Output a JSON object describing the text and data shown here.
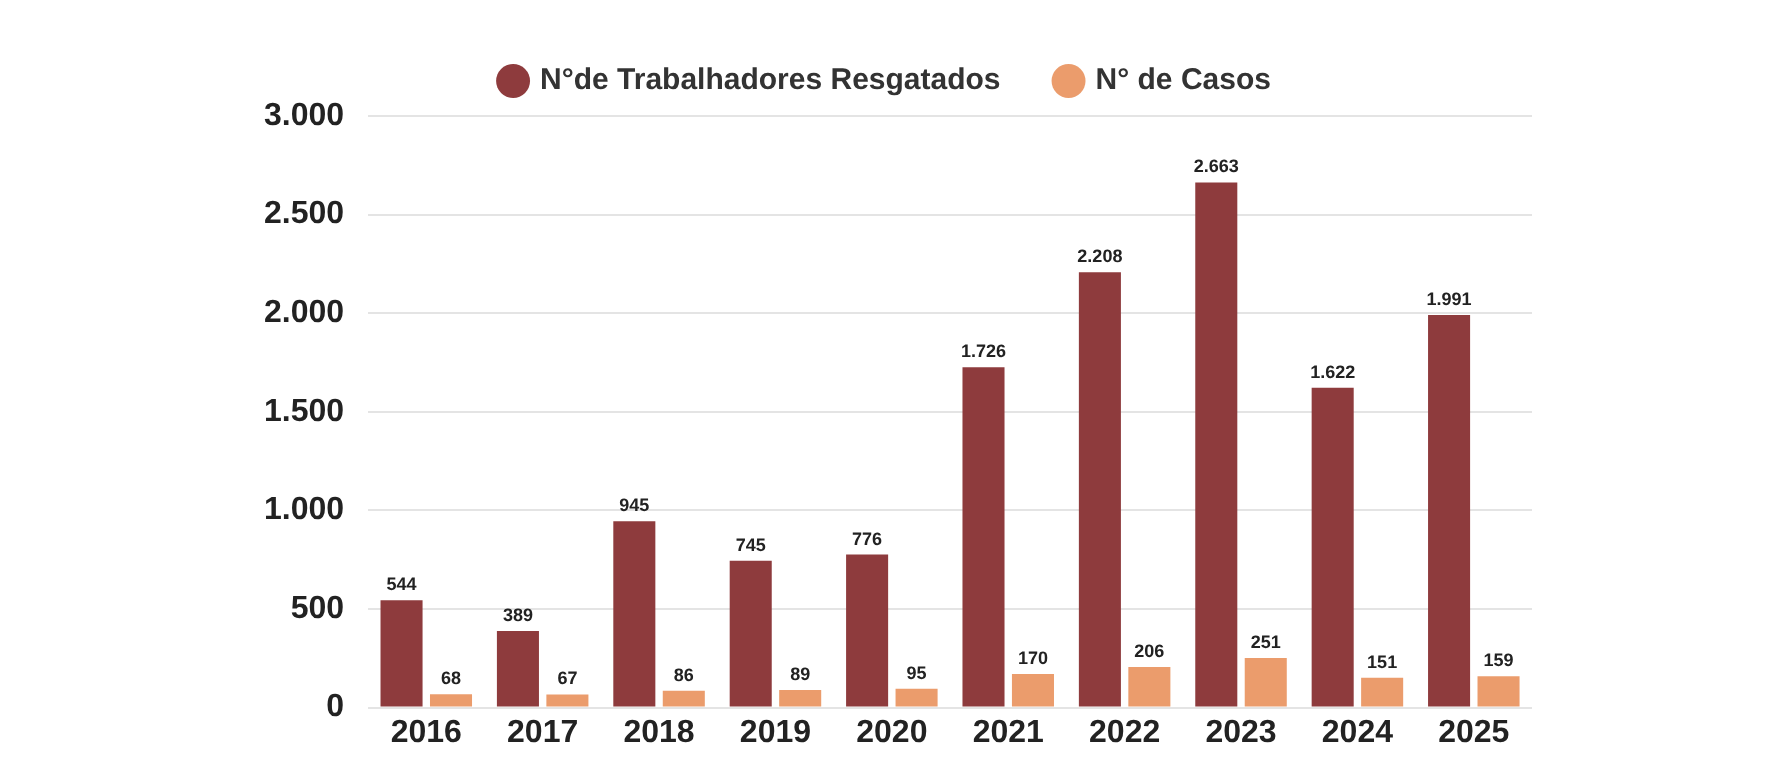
{
  "chart_data": {
    "type": "bar",
    "categories": [
      "2016",
      "2017",
      "2018",
      "2019",
      "2020",
      "2021",
      "2022",
      "2023",
      "2024",
      "2025"
    ],
    "series": [
      {
        "name": "N°de Trabalhadores Resgatados",
        "color": "#8e3b3d",
        "values": [
          544,
          389,
          945,
          745,
          776,
          1726,
          2208,
          2663,
          1622,
          1991
        ],
        "value_labels": [
          "544",
          "389",
          "945",
          "745",
          "776",
          "1.726",
          "2.208",
          "2.663",
          "1.622",
          "1.991"
        ]
      },
      {
        "name": "N° de Casos",
        "color": "#eb9c6c",
        "values": [
          68,
          67,
          86,
          89,
          95,
          170,
          206,
          251,
          151,
          159
        ],
        "value_labels": [
          "68",
          "67",
          "86",
          "89",
          "95",
          "170",
          "206",
          "251",
          "151",
          "159"
        ]
      }
    ],
    "ylim": [
      0,
      3000
    ],
    "yticks": [
      {
        "value": 0,
        "label": "0"
      },
      {
        "value": 500,
        "label": "500"
      },
      {
        "value": 1000,
        "label": "1.000"
      },
      {
        "value": 1500,
        "label": "1.500"
      },
      {
        "value": 2000,
        "label": "2.000"
      },
      {
        "value": 2500,
        "label": "2.500"
      },
      {
        "value": 3000,
        "label": "3.000"
      }
    ],
    "grid": "y",
    "legend": "top"
  }
}
